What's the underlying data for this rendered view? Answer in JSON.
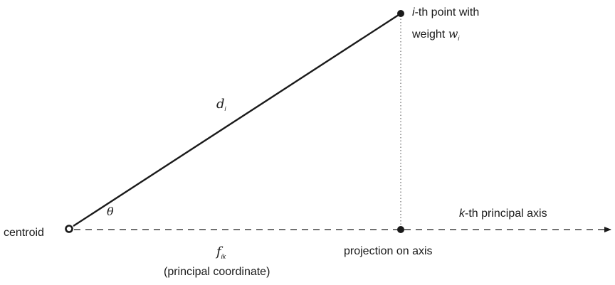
{
  "labels": {
    "point_letter": "i",
    "point_line1_rest": "-th point with",
    "point_line2_text": "weight ",
    "point_weight_symbol": "w",
    "point_weight_sub": "i",
    "distance_symbol": "d",
    "distance_sub": "i",
    "angle_symbol": "θ",
    "centroid": "centroid",
    "axis_letter": "k",
    "axis_rest": "-th principal axis",
    "projection": "projection on axis",
    "coordinate_symbol": "f",
    "coordinate_sub": "ik",
    "coordinate_caption": "(principal coordinate)"
  },
  "colors": {
    "ink": "#1a1a1a",
    "dotted_guide": "#777777"
  }
}
